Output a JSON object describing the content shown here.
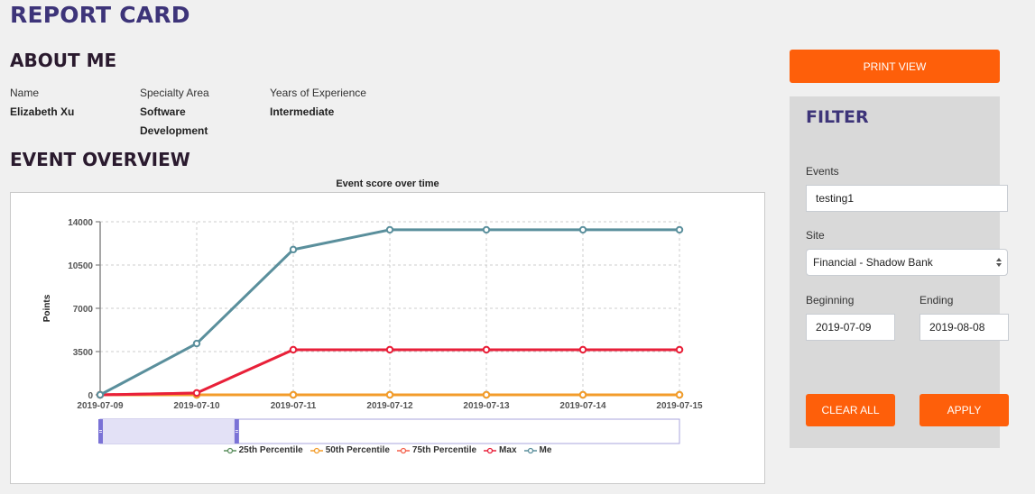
{
  "page": {
    "title": "REPORT CARD"
  },
  "about": {
    "title": "ABOUT ME",
    "fields": [
      {
        "label": "Name",
        "value": "Elizabeth Xu"
      },
      {
        "label": "Specialty Area",
        "value_line1": "Software",
        "value_line2": "Development"
      },
      {
        "label": "Years of Experience",
        "value": "Intermediate"
      }
    ]
  },
  "overview": {
    "title": "EVENT OVERVIEW"
  },
  "actions": {
    "print_label": "PRINT VIEW"
  },
  "filter": {
    "title": "FILTER",
    "events_label": "Events",
    "events_value": "testing1",
    "site_label": "Site",
    "site_value": "Financial - Shadow Bank",
    "beginning_label": "Beginning",
    "beginning_value": "2019-07-09",
    "ending_label": "Ending",
    "ending_value": "2019-08-08",
    "clear_label": "CLEAR ALL",
    "apply_label": "APPLY"
  },
  "chart_data": {
    "type": "line",
    "title": "Event score over time",
    "xlabel": "",
    "ylabel": "Points",
    "ylim": [
      0,
      14000
    ],
    "yticks": [
      0,
      3500,
      7000,
      10500,
      14000
    ],
    "grid": true,
    "legend_position": "bottom",
    "categories": [
      "2019-07-09",
      "2019-07-10",
      "2019-07-11",
      "2019-07-12",
      "2019-07-13",
      "2019-07-14",
      "2019-07-15"
    ],
    "series": [
      {
        "name": "25th Percentile",
        "color": "#5b8f5e",
        "values": [
          0,
          0,
          0,
          0,
          0,
          0,
          0
        ]
      },
      {
        "name": "50th Percentile",
        "color": "#f39c2b",
        "values": [
          0,
          0,
          0,
          0,
          0,
          0,
          0
        ]
      },
      {
        "name": "75th Percentile",
        "color": "#f4614c",
        "values": [
          0,
          150,
          3650,
          3650,
          3650,
          3650,
          3650
        ]
      },
      {
        "name": "Max",
        "color": "#e8203a",
        "values": [
          0,
          150,
          3650,
          3650,
          3650,
          3650,
          3650
        ]
      },
      {
        "name": "Me",
        "color": "#5a8f9c",
        "values": [
          0,
          4150,
          11750,
          13350,
          13350,
          13350,
          13350
        ]
      }
    ],
    "zoom_slider": {
      "start_fraction": 0.0,
      "end_fraction": 0.235
    }
  }
}
